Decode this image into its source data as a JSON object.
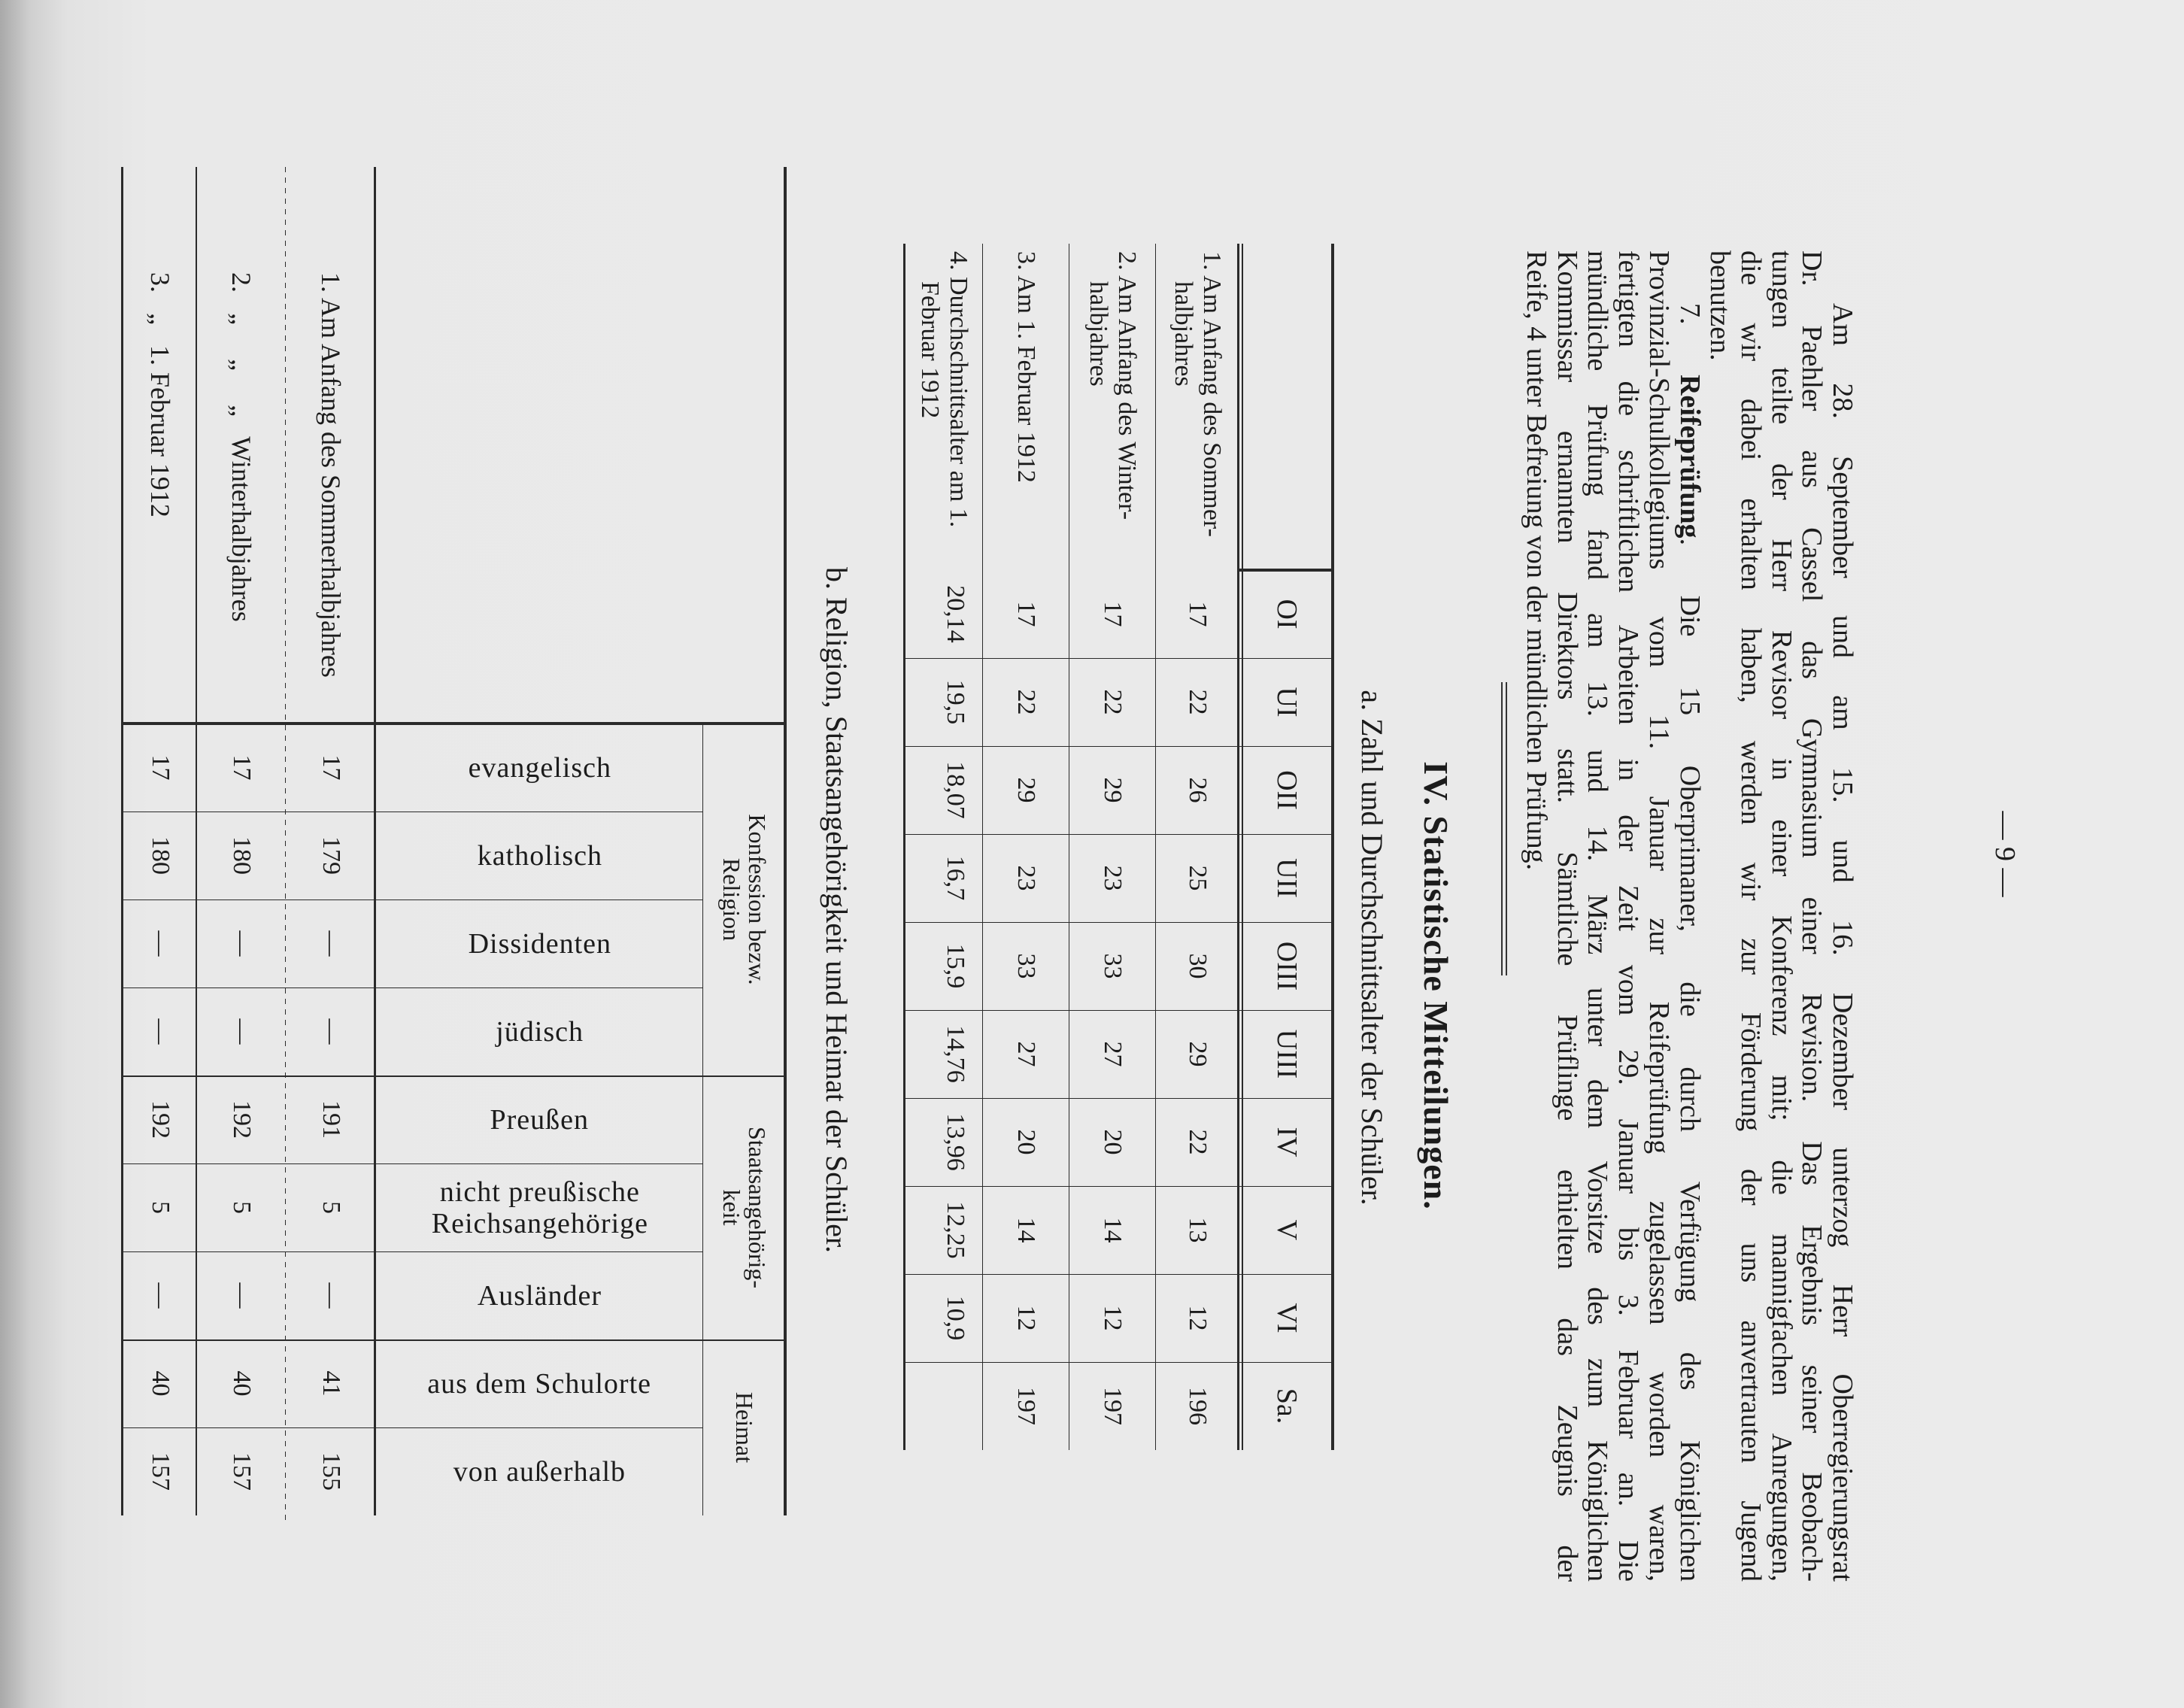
{
  "page_number": "— 9 —",
  "paragraphs": {
    "lines": [
      "Am 28. September und am 15. und 16. Dezember unterzog Herr Oberregierungsrat",
      "Dr. Paehler aus Cassel das Gymnasium einer Revision. Das Ergebnis seiner Beobach-",
      "tungen teilte der Herr Revisor in einer Konferenz mit; die mannigfachen Anregungen,",
      "die wir dabei erhalten haben, werden wir zur Förderung der uns anvertrauten Jugend",
      "benutzen."
    ],
    "section7": {
      "number": "7.",
      "heading": "Reifeprüfung",
      "first_line_rest": ". Die 15 Oberprimaner, die durch Verfügung des Königlichen",
      "lines": [
        "Provinzial-Schulkollegiums vom 11. Januar zur Reifeprüfung zugelassen worden waren,",
        "fertigten die schriftlichen Arbeiten in der Zeit vom 29. Januar bis 3. Februar an. Die",
        "mündliche Prüfung fand am 13. und 14. März unter dem Vorsitze des zum Königlichen",
        "Kommissar ernannten Direktors statt. Sämtliche Prüflinge erhielten das Zeugnis der",
        "Reife, 4 unter Befreiung von der mündlichen Prüfung."
      ]
    }
  },
  "section_title": "IV. Statistische Mitteilungen.",
  "table_a": {
    "title": "a. Zahl und Durchschnittsalter der Schüler.",
    "headers": [
      "OI",
      "UI",
      "OII",
      "UII",
      "OIII",
      "UIII",
      "IV",
      "V",
      "VI",
      "Sa."
    ],
    "rows": [
      {
        "label": [
          "1. Am Anfang des Sommer-",
          "halbjahres"
        ],
        "values": [
          "17",
          "22",
          "26",
          "25",
          "30",
          "29",
          "22",
          "13",
          "12",
          "196"
        ]
      },
      {
        "label": [
          "2. Am Anfang des Winter-",
          "halbjahres"
        ],
        "values": [
          "17",
          "22",
          "29",
          "23",
          "33",
          "27",
          "20",
          "14",
          "12",
          "197"
        ]
      },
      {
        "label": [
          "3. Am 1. Februar 1912"
        ],
        "values": [
          "17",
          "22",
          "29",
          "23",
          "33",
          "27",
          "20",
          "14",
          "12",
          "197"
        ]
      },
      {
        "label": [
          "4. Durchschnittsalter am 1.",
          "Februar 1912"
        ],
        "values": [
          "20,14",
          "19,5",
          "18,07",
          "16,7",
          "15,9",
          "14,76",
          "13,96",
          "12,25",
          "10,9",
          ""
        ]
      }
    ]
  },
  "table_b": {
    "title": "b. Religion, Staatsangehörigkeit und Heimat der Schüler.",
    "groups": [
      {
        "label": [
          "Konfession bezw.",
          "Religion"
        ],
        "span": 4
      },
      {
        "label": [
          "Staatsangehörig-",
          "keit"
        ],
        "span": 3
      },
      {
        "label": [
          "Heimat"
        ],
        "span": 2
      }
    ],
    "headers": [
      [
        "evangelisch"
      ],
      [
        "katholisch"
      ],
      [
        "Dissidenten"
      ],
      [
        "jüdisch"
      ],
      [
        "Preußen"
      ],
      [
        "nicht preußische",
        "Reichsangehörige"
      ],
      [
        "Ausländer"
      ],
      [
        "aus dem Schulorte"
      ],
      [
        "von außerhalb"
      ]
    ],
    "rows": [
      {
        "label": "1. Am Anfang des Sommerhalbjahres",
        "values": [
          "17",
          "179",
          "—",
          "—",
          "191",
          "5",
          "—",
          "41",
          "155"
        ]
      },
      {
        "label": "2.   „     „     „   Winterhalbjahres",
        "values": [
          "17",
          "180",
          "—",
          "—",
          "192",
          "5",
          "—",
          "40",
          "157"
        ]
      },
      {
        "label": "3.   „   1. Februar 1912",
        "values": [
          "17",
          "180",
          "—",
          "—",
          "192",
          "5",
          "—",
          "40",
          "157"
        ]
      }
    ]
  }
}
